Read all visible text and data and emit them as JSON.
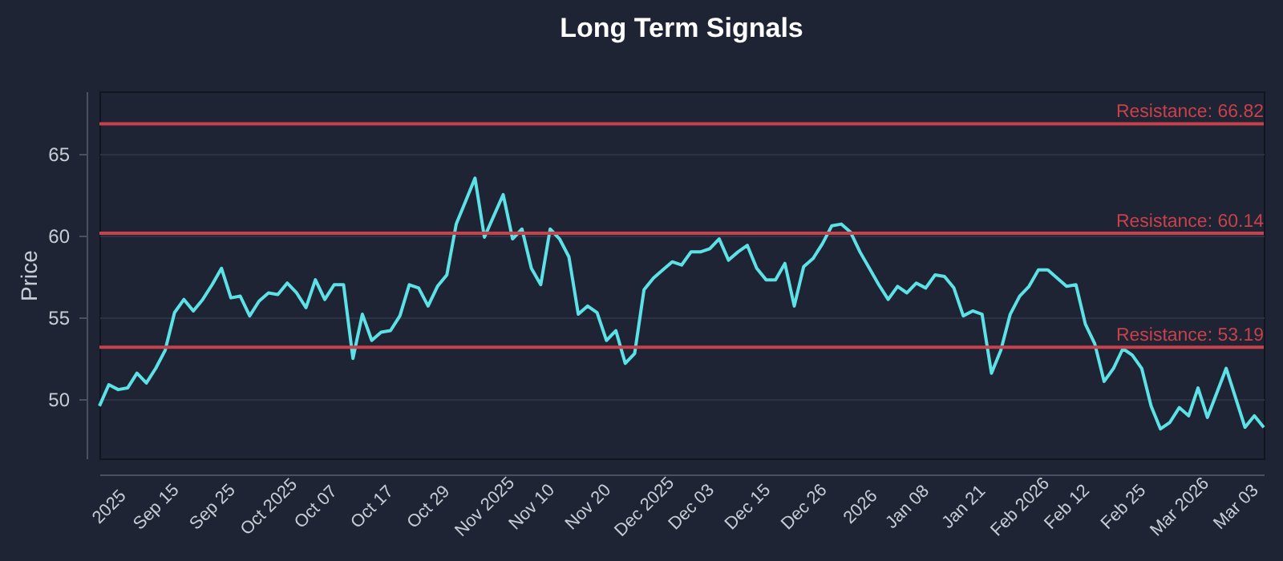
{
  "chart_data": {
    "type": "line",
    "title": "Long Term Signals",
    "ylabel": "Price",
    "categories": [
      null,
      "2025",
      null,
      null,
      null,
      null,
      "Sep 15",
      null,
      null,
      null,
      null,
      null,
      "Sep 25",
      null,
      null,
      null,
      null,
      null,
      "Oct 2025",
      null,
      null,
      null,
      null,
      "Oct 07",
      null,
      null,
      null,
      null,
      null,
      "Oct 17",
      null,
      null,
      null,
      null,
      null,
      "Oct 29",
      null,
      null,
      null,
      null,
      null,
      "Nov 2025",
      null,
      null,
      null,
      null,
      "Nov 10",
      null,
      null,
      null,
      null,
      null,
      "Nov 20",
      null,
      null,
      null,
      null,
      null,
      "Dec 2025",
      null,
      null,
      null,
      null,
      "Dec 03",
      null,
      null,
      null,
      null,
      null,
      "Dec 15",
      null,
      null,
      null,
      null,
      null,
      "Dec 26",
      null,
      null,
      null,
      null,
      null,
      "2026",
      null,
      null,
      null,
      null,
      "Jan 08",
      null,
      null,
      null,
      null,
      null,
      "Jan 21",
      null,
      null,
      null,
      null,
      null,
      "Feb 2026",
      null,
      null,
      null,
      null,
      "Feb 12",
      null,
      null,
      null,
      null,
      null,
      "Feb 25",
      null,
      null,
      null,
      null,
      null,
      "Mar 2026",
      null,
      null,
      null,
      null,
      null,
      "Mar 03",
      null,
      null,
      null
    ],
    "series": [
      {
        "color": "#5ce1e6",
        "values": [
          49.6,
          50.9,
          50.6,
          50.7,
          51.6,
          51.0,
          51.9,
          53.0,
          55.3,
          56.1,
          55.4,
          56.1,
          57.0,
          58.0,
          56.2,
          56.3,
          55.1,
          56.0,
          56.5,
          56.4,
          57.1,
          56.5,
          55.6,
          57.3,
          56.1,
          57.0,
          57.0,
          52.5,
          55.2,
          53.6,
          54.1,
          54.2,
          55.1,
          57.0,
          56.8,
          55.7,
          56.9,
          57.6,
          60.7,
          62.1,
          63.5,
          59.9,
          61.2,
          62.5,
          59.8,
          60.4,
          58.0,
          57.0,
          60.4,
          59.8,
          58.7,
          55.2,
          55.7,
          55.3,
          53.6,
          54.2,
          52.2,
          52.8,
          56.7,
          57.4,
          57.9,
          58.4,
          58.2,
          59.0,
          59.0,
          59.2,
          59.8,
          58.5,
          59.0,
          59.4,
          58.0,
          57.3,
          57.3,
          58.3,
          55.7,
          58.1,
          58.6,
          59.5,
          60.6,
          60.7,
          60.2,
          59.0,
          58.0,
          57.0,
          56.1,
          56.9,
          56.5,
          57.1,
          56.8,
          57.6,
          57.5,
          56.8,
          55.1,
          55.4,
          55.2,
          51.6,
          53.0,
          55.2,
          56.3,
          56.9,
          57.9,
          57.9,
          57.4,
          56.9,
          57.0,
          54.6,
          53.4,
          51.1,
          51.9,
          53.1,
          52.7,
          51.9,
          49.6,
          48.2,
          48.6,
          49.5,
          49.0,
          50.7,
          48.9,
          50.4,
          51.9,
          50.1,
          48.3,
          49.0,
          48.3
        ]
      }
    ],
    "ylim": [
      46.4,
      68.8
    ],
    "yticks": [
      50,
      55,
      60,
      65
    ],
    "grid": "y",
    "ref_lines": [
      {
        "axis": "y",
        "value": 66.82,
        "label": "Resistance: 66.82",
        "color": "#c8414b"
      },
      {
        "axis": "y",
        "value": 60.14,
        "label": "Resistance: 60.14",
        "color": "#c8414b"
      },
      {
        "axis": "y",
        "value": 53.19,
        "label": "Resistance: 53.19",
        "color": "#c8414b"
      }
    ]
  }
}
